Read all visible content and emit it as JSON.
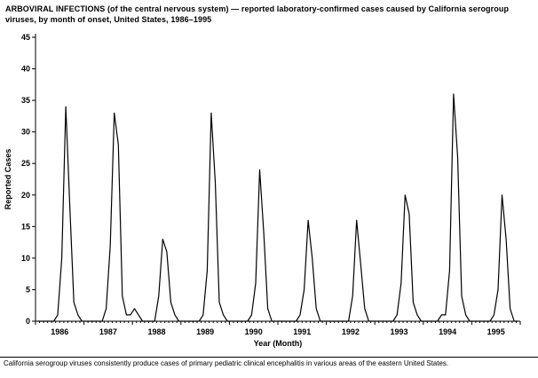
{
  "title": "ARBOVIRAL INFECTIONS (of the central nervous system) — reported laboratory-confirmed cases caused by California serogroup viruses, by month of onset, United States, 1986–1995",
  "footnote": "California serogroup viruses consistently produce cases of primary pediatric clinical encephalitis in various areas of the eastern United States.",
  "chart_data": {
    "type": "line",
    "title": "Arboviral infections (California serogroup viruses), reported laboratory-confirmed cases by month of onset, United States, 1986–1995",
    "xlabel": "Year (Month)",
    "ylabel": "Reported Cases",
    "ylim": [
      0,
      45
    ],
    "yticks": [
      0,
      5,
      10,
      15,
      20,
      25,
      30,
      35,
      40,
      45
    ],
    "grid": false,
    "legend": "none",
    "line_color": "#000000",
    "years": [
      "1986",
      "1987",
      "1988",
      "1989",
      "1990",
      "1991",
      "1992",
      "1993",
      "1994",
      "1995"
    ],
    "annual_peaks": [
      34,
      33,
      13,
      33,
      24,
      16,
      16,
      20,
      36,
      20
    ],
    "series": [
      {
        "name": "Reported cases per month",
        "monthly_values_by_year": {
          "1986": [
            0,
            0,
            0,
            0,
            0,
            1,
            10,
            34,
            18,
            3,
            1,
            0
          ],
          "1987": [
            0,
            0,
            0,
            0,
            0,
            2,
            12,
            33,
            28,
            4,
            1,
            1
          ],
          "1988": [
            2,
            1,
            0,
            0,
            0,
            0,
            4,
            13,
            11,
            3,
            1,
            0
          ],
          "1989": [
            0,
            0,
            0,
            0,
            0,
            1,
            8,
            33,
            22,
            3,
            1,
            0
          ],
          "1990": [
            0,
            0,
            0,
            0,
            0,
            1,
            6,
            24,
            14,
            2,
            0,
            0
          ],
          "1991": [
            0,
            0,
            0,
            0,
            0,
            1,
            5,
            16,
            10,
            2,
            0,
            0
          ],
          "1992": [
            0,
            0,
            0,
            0,
            0,
            0,
            4,
            16,
            9,
            2,
            0,
            0
          ],
          "1993": [
            0,
            0,
            0,
            0,
            0,
            1,
            6,
            20,
            17,
            3,
            1,
            0
          ],
          "1994": [
            0,
            0,
            0,
            0,
            1,
            1,
            8,
            36,
            26,
            4,
            1,
            0
          ],
          "1995": [
            0,
            0,
            0,
            0,
            0,
            1,
            5,
            20,
            13,
            2,
            0,
            0
          ]
        }
      }
    ]
  }
}
